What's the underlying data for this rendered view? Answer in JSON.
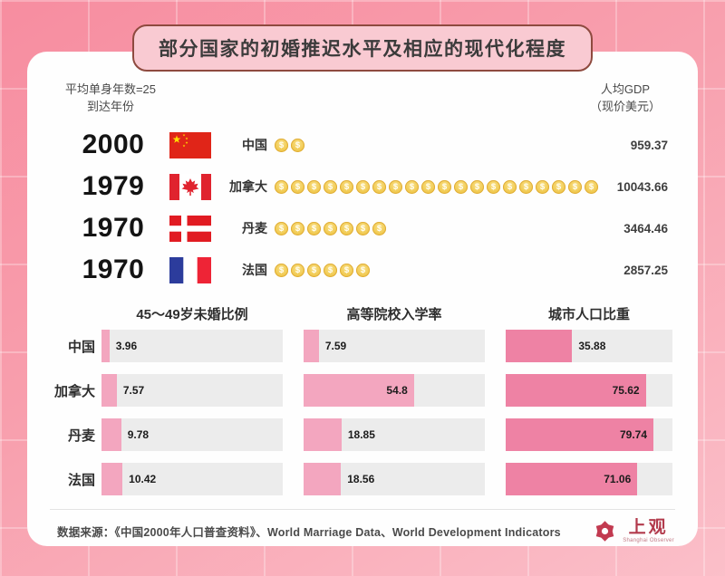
{
  "title": "部分国家的初婚推迟水平及相应的现代化程度",
  "top_section": {
    "left_header_line1": "平均单身年数=25",
    "left_header_line2": "到达年份",
    "right_header_line1": "人均GDP",
    "right_header_line2": "（现价美元）",
    "rows": [
      {
        "year": "2000",
        "country": "中国",
        "coins": 2,
        "gdp": "959.37"
      },
      {
        "year": "1979",
        "country": "加拿大",
        "coins": 20,
        "gdp": "10043.66"
      },
      {
        "year": "1970",
        "country": "丹麦",
        "coins": 7,
        "gdp": "3464.46"
      },
      {
        "year": "1970",
        "country": "法国",
        "coins": 6,
        "gdp": "2857.25"
      }
    ]
  },
  "bar_section": {
    "columns": [
      "45～49岁未婚比例",
      "高等院校入学率",
      "城市人口比重"
    ],
    "scale_max": 90,
    "rows": [
      {
        "label": "中国",
        "values": [
          3.96,
          7.59,
          35.88
        ]
      },
      {
        "label": "加拿大",
        "values": [
          7.57,
          54.8,
          75.62
        ]
      },
      {
        "label": "丹麦",
        "values": [
          9.78,
          18.85,
          79.74
        ]
      },
      {
        "label": "法国",
        "values": [
          10.42,
          18.56,
          71.06
        ]
      }
    ]
  },
  "chart_data": [
    {
      "type": "table",
      "title": "平均单身年数=25到达年份 与 人均GDP（现价美元）",
      "categories": [
        "中国",
        "加拿大",
        "丹麦",
        "法国"
      ],
      "series": [
        {
          "name": "平均单身年数=25到达年份",
          "values": [
            2000,
            1979,
            1970,
            1970
          ]
        },
        {
          "name": "人均GDP（现价美元）",
          "values": [
            959.37,
            10043.66,
            3464.46,
            2857.25
          ]
        },
        {
          "name": "金币图标数量",
          "values": [
            2,
            20,
            7,
            6
          ]
        }
      ]
    },
    {
      "type": "bar",
      "orientation": "horizontal",
      "categories": [
        "中国",
        "加拿大",
        "丹麦",
        "法国"
      ],
      "series": [
        {
          "name": "45～49岁未婚比例",
          "values": [
            3.96,
            7.57,
            9.78,
            10.42
          ]
        },
        {
          "name": "高等院校入学率",
          "values": [
            7.59,
            54.8,
            18.85,
            18.56
          ]
        },
        {
          "name": "城市人口比重",
          "values": [
            35.88,
            75.62,
            79.74,
            71.06
          ]
        }
      ],
      "xlim": [
        0,
        90
      ],
      "grid": false,
      "legend_position": "column-headers"
    }
  ],
  "footer": {
    "source": "数据来源：《中国2000年人口普查资料》、World Marriage Data、World Development Indicators",
    "logo_cn": "上观",
    "logo_en": "Shanghai Observer"
  },
  "icons": {
    "coin_glyph": "$"
  },
  "colors": {
    "background_pink": "#f79aa9",
    "pill_fill": "#f9cad2",
    "pill_border": "#8e4a3f",
    "bar_light_pink": "#f3a6bf",
    "bar_deep_pink": "#ee82a4",
    "bar_track": "#ececec",
    "coin_gold": "#f0c74b",
    "logo_red": "#b23a4c"
  }
}
